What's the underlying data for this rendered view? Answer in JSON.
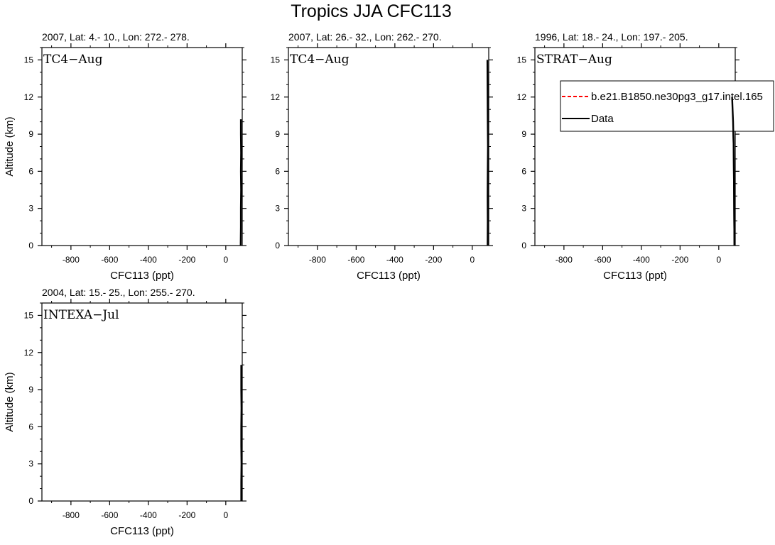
{
  "figure": {
    "title": "Tropics JJA CFC113"
  },
  "legend": {
    "entries": [
      {
        "label": "b.e21.B1850.ne30pg3_g17.intel.165",
        "color": "#ff0000",
        "dash": true
      },
      {
        "label": "Data",
        "color": "#000000",
        "dash": false
      }
    ]
  },
  "chart_data": [
    {
      "type": "line",
      "title": "2007, Lat: 4.- 10., Lon: 272.- 278.",
      "campaign_label": "TC4−Aug",
      "xlabel": "CFC113 (ppt)",
      "ylabel": "Altitude (km)",
      "xlim": [
        -950,
        85
      ],
      "ylim": [
        0,
        16
      ],
      "xticks": [
        -800,
        -600,
        -400,
        -200,
        0
      ],
      "xtick_labels": [
        "-800",
        "-600",
        "-400",
        "-200",
        "0"
      ],
      "yticks": [
        0,
        3,
        6,
        9,
        12,
        15
      ],
      "ytick_labels": [
        "0",
        "3",
        "6",
        "9",
        "12",
        "15"
      ],
      "series": [
        {
          "name": "Data",
          "color": "#000000",
          "x": [
            77,
            78,
            78,
            79,
            78,
            79,
            78,
            78
          ],
          "y": [
            0,
            1.5,
            3,
            4.5,
            6,
            7.5,
            9,
            10.2
          ]
        }
      ]
    },
    {
      "type": "line",
      "title": "2007, Lat: 26.- 32., Lon: 262.- 270.",
      "campaign_label": "TC4−Aug",
      "xlabel": "CFC113 (ppt)",
      "ylabel": "",
      "xlim": [
        -950,
        85
      ],
      "ylim": [
        0,
        16
      ],
      "xticks": [
        -800,
        -600,
        -400,
        -200,
        0
      ],
      "xtick_labels": [
        "-800",
        "-600",
        "-400",
        "-200",
        "0"
      ],
      "yticks": [
        0,
        3,
        6,
        9,
        12,
        15
      ],
      "ytick_labels": [
        "0",
        "3",
        "6",
        "9",
        "12",
        "15"
      ],
      "series": [
        {
          "name": "Data",
          "color": "#000000",
          "x": [
            79,
            80,
            79,
            80,
            81,
            80,
            79,
            78
          ],
          "y": [
            0,
            2,
            4,
            6,
            8,
            10,
            12,
            15
          ]
        }
      ]
    },
    {
      "type": "line",
      "title": "1996, Lat: 18.- 24., Lon: 197.- 205.",
      "campaign_label": "STRAT−Aug",
      "xlabel": "CFC113 (ppt)",
      "ylabel": "",
      "xlim": [
        -950,
        85
      ],
      "ylim": [
        0,
        16
      ],
      "xticks": [
        -800,
        -600,
        -400,
        -200,
        0
      ],
      "xtick_labels": [
        "-800",
        "-600",
        "-400",
        "-200",
        "0"
      ],
      "yticks": [
        0,
        3,
        6,
        9,
        12,
        15
      ],
      "ytick_labels": [
        "0",
        "3",
        "6",
        "9",
        "12",
        "15"
      ],
      "series": [
        {
          "name": "Data",
          "color": "#000000",
          "x": [
            81,
            80,
            79,
            78,
            77,
            74,
            69
          ],
          "y": [
            0,
            2,
            4,
            6,
            8,
            10,
            12
          ]
        }
      ]
    },
    {
      "type": "line",
      "title": "2004, Lat: 15.- 25., Lon: 255.- 270.",
      "campaign_label": "INTEXA−Jul",
      "xlabel": "CFC113 (ppt)",
      "ylabel": "Altitude (km)",
      "xlim": [
        -950,
        85
      ],
      "ylim": [
        0,
        16
      ],
      "xticks": [
        -800,
        -600,
        -400,
        -200,
        0
      ],
      "xtick_labels": [
        "-800",
        "-600",
        "-400",
        "-200",
        "0"
      ],
      "yticks": [
        0,
        3,
        6,
        9,
        12,
        15
      ],
      "ytick_labels": [
        "0",
        "3",
        "6",
        "9",
        "12",
        "15"
      ],
      "series": [
        {
          "name": "Data",
          "color": "#000000",
          "x": [
            80,
            80,
            81,
            80,
            80,
            81,
            80,
            80
          ],
          "y": [
            0,
            1.5,
            3,
            4.5,
            6,
            7.5,
            9,
            11
          ]
        }
      ]
    }
  ]
}
